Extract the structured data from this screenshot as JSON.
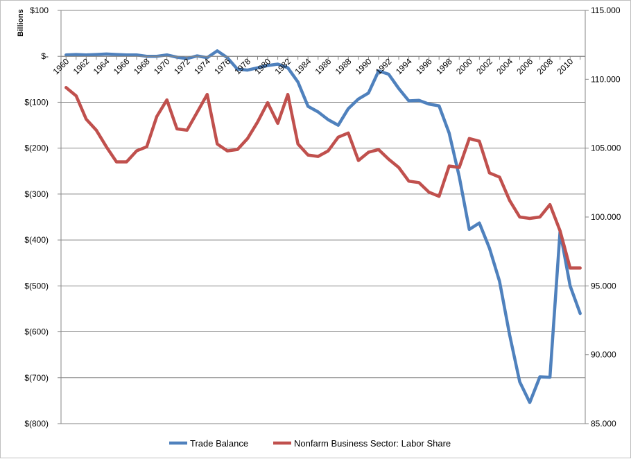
{
  "chart_data": {
    "type": "line",
    "title": "",
    "xlabel": "",
    "ylabel_left": "Billions",
    "ylabel_right": "",
    "ylim_left": [
      -800,
      100
    ],
    "ylim_right": [
      85,
      115
    ],
    "xlim": [
      1960,
      2011
    ],
    "grid": "horizontal",
    "legend_position": "bottom",
    "left_ticks": [
      "$100",
      "$-",
      "$(100)",
      "$(200)",
      "$(300)",
      "$(400)",
      "$(500)",
      "$(600)",
      "$(700)",
      "$(800)"
    ],
    "left_tick_values": [
      100,
      0,
      -100,
      -200,
      -300,
      -400,
      -500,
      -600,
      -700,
      -800
    ],
    "right_ticks": [
      "115.000",
      "110.000",
      "105.000",
      "100.000",
      "95.000",
      "90.000",
      "85.000"
    ],
    "right_tick_values": [
      115,
      110,
      105,
      100,
      95,
      90,
      85
    ],
    "x_ticks": [
      "1960",
      "1962",
      "1964",
      "1966",
      "1968",
      "1970",
      "1972",
      "1974",
      "1976",
      "1978",
      "1980",
      "1982",
      "1984",
      "1986",
      "1988",
      "1990",
      "1992",
      "1994",
      "1996",
      "1998",
      "2000",
      "2002",
      "2004",
      "2006",
      "2008",
      "2010"
    ],
    "x": [
      1960,
      1961,
      1962,
      1963,
      1964,
      1965,
      1966,
      1967,
      1968,
      1969,
      1970,
      1971,
      1972,
      1973,
      1974,
      1975,
      1976,
      1977,
      1978,
      1979,
      1980,
      1981,
      1982,
      1983,
      1984,
      1985,
      1986,
      1987,
      1988,
      1989,
      1990,
      1991,
      1992,
      1993,
      1994,
      1995,
      1996,
      1997,
      1998,
      1999,
      2000,
      2001,
      2002,
      2003,
      2004,
      2005,
      2006,
      2007,
      2008,
      2009,
      2010,
      2011
    ],
    "series": [
      {
        "name": "Trade Balance",
        "axis": "left",
        "color": "#4f81bd",
        "values": [
          3,
          4,
          3,
          4,
          5,
          4,
          3,
          3,
          0,
          0,
          3,
          -2,
          -5,
          1,
          -3,
          12,
          -3,
          -28,
          -30,
          -25,
          -20,
          -17,
          -25,
          -56,
          -109,
          -121,
          -138,
          -150,
          -114,
          -93,
          -80,
          -32,
          -39,
          -70,
          -97,
          -96,
          -104,
          -108,
          -167,
          -262,
          -377,
          -363,
          -418,
          -490,
          -607,
          -709,
          -754,
          -698,
          -699,
          -381,
          -500,
          -560
        ]
      },
      {
        "name": "Nonfarm Business Sector: Labor Share",
        "axis": "right",
        "color": "#c0504d",
        "values": [
          109.4,
          108.8,
          107.1,
          106.3,
          105.1,
          104.0,
          104.0,
          104.8,
          105.1,
          107.3,
          108.5,
          106.4,
          106.3,
          107.6,
          108.9,
          105.3,
          104.8,
          104.9,
          105.7,
          106.9,
          108.3,
          106.8,
          108.9,
          105.3,
          104.5,
          104.4,
          104.8,
          105.8,
          106.1,
          104.1,
          104.7,
          104.9,
          104.2,
          103.6,
          102.6,
          102.5,
          101.8,
          101.5,
          103.7,
          103.6,
          105.7,
          105.5,
          103.2,
          102.9,
          101.2,
          100.0,
          99.9,
          100.0,
          100.9,
          99.0,
          96.3,
          96.3
        ]
      }
    ]
  }
}
